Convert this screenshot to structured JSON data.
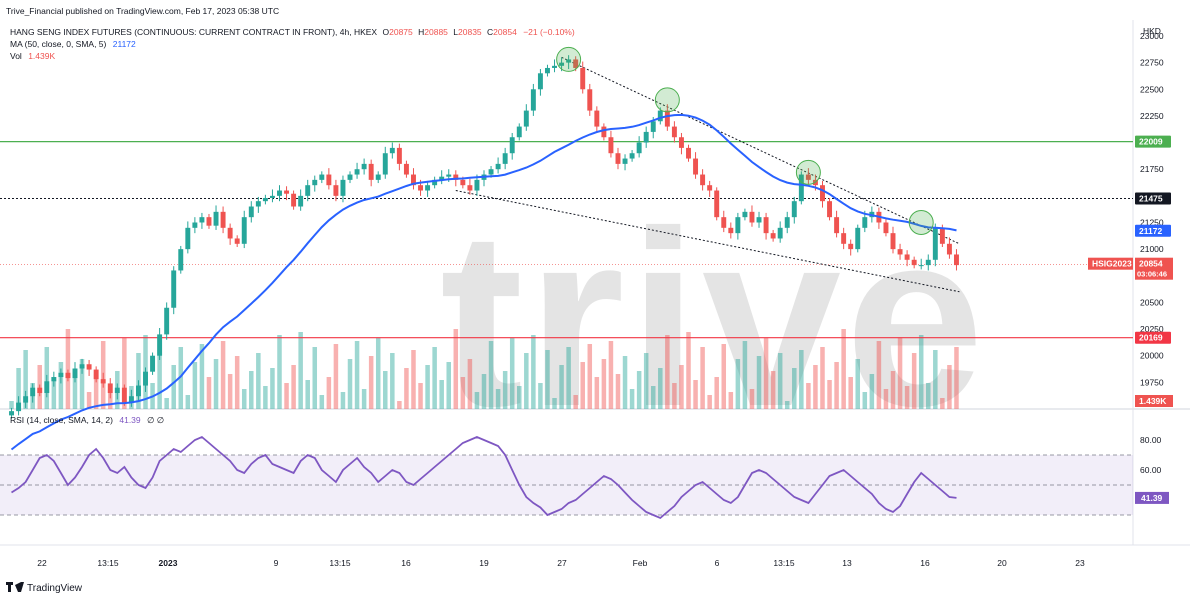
{
  "header": {
    "publisher": "Trive_Financial published on TradingView.com, Feb 17, 2023 05:38 UTC",
    "symbol_line_prefix": "HANG SENG INDEX FUTURES (CONTINUOUS: CURRENT CONTRACT IN FRONT), 4h, HKEX",
    "ohlc": {
      "o_label": "O",
      "o": "20875",
      "h_label": "H",
      "h": "20885",
      "l_label": "L",
      "l": "20835",
      "c_label": "C",
      "c": "20854",
      "change": "−21 (−0.10%)"
    },
    "ma_label": "MA (50, close, 0, SMA, 5)",
    "ma_value": "21172",
    "vol_label": "Vol",
    "vol_value": "1.439K",
    "rsi_label": "RSI (14, close, SMA, 14, 2)",
    "rsi_value": "41.39",
    "rsi_extra": "∅  ∅"
  },
  "currency": "HKD",
  "watermark": "trive",
  "footer_brand": "TradingView",
  "colors": {
    "up": "#26a69a",
    "down": "#ef5350",
    "ma": "#2962ff",
    "rsi": "#7e57c2",
    "support": "#f23645",
    "resistance": "#4caf50"
  },
  "chart_data": [
    {
      "type": "candlestick",
      "title": "HANG SENG INDEX FUTURES (CONTINUOUS: CURRENT CONTRACT IN FRONT), 4h, HKEX",
      "ylim": [
        19500,
        23150
      ],
      "y_ticks": [
        "23000",
        "22750",
        "22500",
        "22250",
        "22000",
        "21750",
        "21500",
        "21250",
        "21000",
        "20750",
        "20500",
        "20250",
        "20000",
        "19750"
      ],
      "x_ticks": [
        "22",
        "13:15",
        "2023",
        "9",
        "13:15",
        "16",
        "19",
        "27",
        "Feb",
        "6",
        "13:15",
        "13",
        "16",
        "20",
        "23"
      ],
      "close_series": [
        19480,
        19560,
        19620,
        19700,
        19650,
        19760,
        19800,
        19840,
        19790,
        19880,
        19920,
        19870,
        19780,
        19740,
        19650,
        19700,
        19560,
        19620,
        19720,
        19850,
        20000,
        20200,
        20450,
        20800,
        21000,
        21200,
        21250,
        21300,
        21220,
        21350,
        21200,
        21100,
        21050,
        21300,
        21400,
        21450,
        21480,
        21500,
        21550,
        21520,
        21400,
        21500,
        21600,
        21650,
        21700,
        21600,
        21500,
        21650,
        21700,
        21750,
        21800,
        21650,
        21700,
        21900,
        21950,
        21800,
        21700,
        21600,
        21550,
        21600,
        21650,
        21680,
        21700,
        21650,
        21600,
        21550,
        21650,
        21700,
        21750,
        21800,
        21900,
        22050,
        22150,
        22300,
        22500,
        22650,
        22700,
        22720,
        22750,
        22780,
        22700,
        22500,
        22300,
        22150,
        22050,
        21900,
        21800,
        21850,
        21900,
        22000,
        22100,
        22200,
        22300,
        22150,
        22050,
        21950,
        21850,
        21700,
        21600,
        21550,
        21300,
        21200,
        21150,
        21300,
        21350,
        21250,
        21300,
        21150,
        21100,
        21200,
        21300,
        21450,
        21700,
        21650,
        21600,
        21450,
        21300,
        21150,
        21050,
        21000,
        21200,
        21300,
        21350,
        21250,
        21150,
        21000,
        20950,
        20900,
        20850,
        20850,
        20900,
        21200,
        21050,
        20950,
        20850
      ],
      "support_line": 20169,
      "resistance_line": 22009,
      "level_21475": 21475,
      "annotations": [
        {
          "label": "22009",
          "value": 22009
        },
        {
          "label": "21475",
          "value": 21475
        },
        {
          "label": "21172",
          "value": 21172
        },
        {
          "label": "HSIG2023",
          "price": "20854",
          "countdown": "03:06:46",
          "value": 20854
        },
        {
          "label": "20169",
          "value": 20169
        },
        {
          "label": "1.439K"
        }
      ]
    },
    {
      "type": "line",
      "title": "RSI (14, close, SMA, 14, 2)",
      "ylim": [
        10,
        90
      ],
      "y_ticks": [
        "80.00",
        "60.00"
      ],
      "band": [
        30,
        70
      ],
      "current": 41.39,
      "values": [
        45,
        48,
        52,
        60,
        68,
        70,
        66,
        58,
        50,
        55,
        62,
        70,
        74,
        68,
        60,
        58,
        62,
        55,
        50,
        48,
        55,
        66,
        70,
        74,
        72,
        76,
        80,
        82,
        78,
        74,
        70,
        66,
        60,
        58,
        64,
        68,
        70,
        64,
        62,
        60,
        58,
        66,
        70,
        68,
        60,
        56,
        52,
        60,
        64,
        68,
        62,
        58,
        52,
        56,
        60,
        58,
        52,
        50,
        54,
        58,
        62,
        66,
        70,
        74,
        78,
        80,
        82,
        80,
        78,
        76,
        70,
        60,
        50,
        42,
        38,
        35,
        30,
        32,
        34,
        38,
        40,
        44,
        48,
        52,
        56,
        54,
        50,
        45,
        40,
        36,
        32,
        30,
        28,
        32,
        36,
        42,
        46,
        50,
        52,
        48,
        44,
        40,
        38,
        42,
        50,
        58,
        60,
        58,
        54,
        50,
        46,
        42,
        40,
        38,
        44,
        50,
        56,
        58,
        60,
        56,
        52,
        48,
        44,
        38,
        34,
        32,
        36,
        44,
        52,
        58,
        54,
        50,
        46,
        42,
        41.39
      ]
    }
  ]
}
